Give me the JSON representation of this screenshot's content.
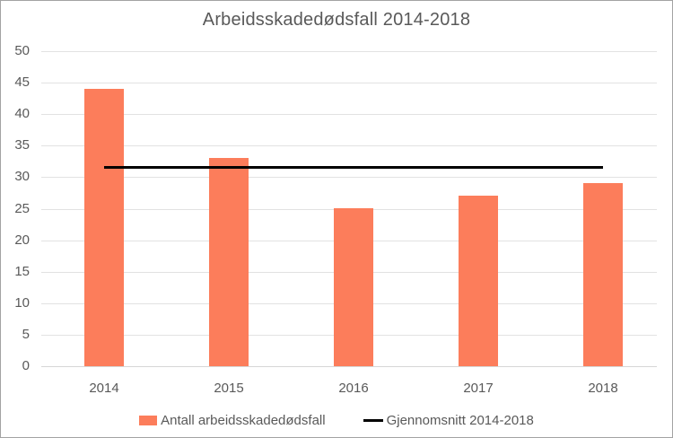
{
  "chart": {
    "colors": {
      "bar": "#fc7d5b",
      "average_line": "#000000",
      "text": "#595959",
      "gridline": "#e2e2e2",
      "axis_line": "#d6d6d6"
    }
  },
  "chart_data": {
    "type": "bar",
    "title": "Arbeidsskadedødsfall 2014-2018",
    "categories": [
      "2014",
      "2015",
      "2016",
      "2017",
      "2018"
    ],
    "series": [
      {
        "name": "Antall arbeidsskadedødsfall",
        "type": "bar",
        "values": [
          44,
          33,
          25,
          27,
          29
        ]
      },
      {
        "name": "Gjennomsnitt 2014-2018",
        "type": "line",
        "values": [
          31.6,
          31.6,
          31.6,
          31.6,
          31.6
        ]
      }
    ],
    "average_value": 31.6,
    "xlabel": "",
    "ylabel": "",
    "ylim": [
      0,
      50
    ],
    "yticks": [
      0,
      5,
      10,
      15,
      20,
      25,
      30,
      35,
      40,
      45,
      50
    ],
    "grid": "horizontal-only",
    "legend_position": "bottom-center"
  },
  "legend": {
    "items": [
      {
        "label": "Antall arbeidsskadedødsfall",
        "marker": "bar-swatch"
      },
      {
        "label": "Gjennomsnitt 2014-2018",
        "marker": "line-swatch"
      }
    ]
  }
}
